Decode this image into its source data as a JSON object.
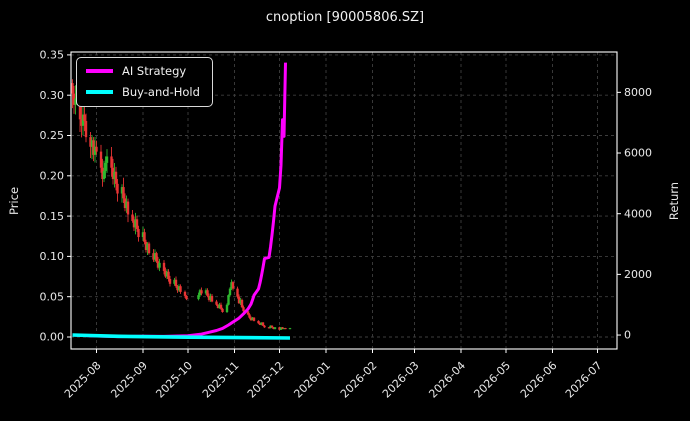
{
  "figure": {
    "background": "#000000",
    "spine_color": "#ffffff",
    "grid_color": "#8a8a8a",
    "tick_label_color": "#e8e8e8"
  },
  "chart_data": {
    "type": "line",
    "title": "cnoption [90005806.SZ]",
    "ylabel_left": "Price",
    "ylabel_right": "Return",
    "grid": true,
    "legend_position": "upper left",
    "y_left": {
      "ticks": [
        0.0,
        0.05,
        0.1,
        0.15,
        0.2,
        0.25,
        0.3,
        0.35
      ],
      "lim": [
        -0.0149,
        0.3536
      ]
    },
    "y_right": {
      "ticks": [
        0,
        2000,
        4000,
        6000,
        8000
      ],
      "lim": [
        -460,
        9330
      ]
    },
    "x": {
      "lim": [
        "2025-07-15",
        "2026-07-14"
      ],
      "tick_dates": [
        "2025-08-01",
        "2025-09-01",
        "2025-10-01",
        "2025-11-01",
        "2025-12-01",
        "2026-01-01",
        "2026-02-01",
        "2026-03-01",
        "2026-04-01",
        "2026-05-01",
        "2026-06-01",
        "2026-07-01"
      ],
      "tick_labels": [
        "2025-08",
        "2025-09",
        "2025-10",
        "2025-11",
        "2025-12",
        "2026-01",
        "2026-02",
        "2026-03",
        "2026-04",
        "2026-05",
        "2026-06",
        "2026-07"
      ]
    },
    "series": [
      {
        "name": "AI Strategy",
        "color": "#ff00ff",
        "axis": "right",
        "line_width": 3.0,
        "points": [
          [
            "2025-07-16",
            0
          ],
          [
            "2025-08-01",
            -30
          ],
          [
            "2025-08-15",
            -50
          ],
          [
            "2025-09-01",
            -40
          ],
          [
            "2025-09-15",
            -45
          ],
          [
            "2025-10-01",
            -20
          ],
          [
            "2025-10-10",
            30
          ],
          [
            "2025-10-15",
            90
          ],
          [
            "2025-10-20",
            150
          ],
          [
            "2025-10-24",
            220
          ],
          [
            "2025-10-28",
            330
          ],
          [
            "2025-10-31",
            430
          ],
          [
            "2025-11-04",
            560
          ],
          [
            "2025-11-07",
            700
          ],
          [
            "2025-11-10",
            860
          ],
          [
            "2025-11-12",
            1020
          ],
          [
            "2025-11-13",
            1160
          ],
          [
            "2025-11-14",
            1310
          ],
          [
            "2025-11-17",
            1520
          ],
          [
            "2025-11-18",
            1720
          ],
          [
            "2025-11-19",
            1960
          ],
          [
            "2025-11-20",
            2230
          ],
          [
            "2025-11-21",
            2520
          ],
          [
            "2025-11-24",
            2560
          ],
          [
            "2025-11-25",
            2900
          ],
          [
            "2025-11-26",
            3300
          ],
          [
            "2025-11-27",
            3750
          ],
          [
            "2025-11-28",
            4250
          ],
          [
            "2025-12-01",
            4850
          ],
          [
            "2025-12-02",
            5600
          ],
          [
            "2025-12-03",
            7100
          ],
          [
            "2025-12-04",
            6550
          ],
          [
            "2025-12-05",
            8980
          ]
        ]
      },
      {
        "name": "Buy-and-Hold",
        "color": "#00ffff",
        "axis": "right",
        "line_width": 3.6,
        "points": [
          [
            "2025-07-16",
            0
          ],
          [
            "2025-08-16",
            -40
          ],
          [
            "2025-10-01",
            -70
          ],
          [
            "2025-12-08",
            -96
          ]
        ]
      }
    ],
    "candles": {
      "axis": "left",
      "up_color": "#2eb82e",
      "down_color": "#e83434",
      "first_open": 0.315,
      "closes": [
        [
          "2025-07-16",
          0.302
        ],
        [
          "2025-07-17",
          0.288
        ],
        [
          "2025-07-18",
          0.296
        ],
        [
          "2025-07-21",
          0.27
        ],
        [
          "2025-07-22",
          0.262
        ],
        [
          "2025-07-23",
          0.276
        ],
        [
          "2025-07-24",
          0.268
        ],
        [
          "2025-07-25",
          0.248
        ],
        [
          "2025-07-28",
          0.236
        ],
        [
          "2025-07-29",
          0.244
        ],
        [
          "2025-07-30",
          0.226
        ],
        [
          "2025-07-31",
          0.236
        ],
        [
          "2025-08-01",
          0.23
        ],
        [
          "2025-08-04",
          0.21
        ],
        [
          "2025-08-05",
          0.196
        ],
        [
          "2025-08-06",
          0.206
        ],
        [
          "2025-08-07",
          0.216
        ],
        [
          "2025-08-08",
          0.224
        ],
        [
          "2025-08-11",
          0.21
        ],
        [
          "2025-08-12",
          0.196
        ],
        [
          "2025-08-13",
          0.205
        ],
        [
          "2025-08-14",
          0.19
        ],
        [
          "2025-08-15",
          0.178
        ],
        [
          "2025-08-18",
          0.186
        ],
        [
          "2025-08-19",
          0.172
        ],
        [
          "2025-08-20",
          0.16
        ],
        [
          "2025-08-21",
          0.168
        ],
        [
          "2025-08-22",
          0.152
        ],
        [
          "2025-08-25",
          0.144
        ],
        [
          "2025-08-26",
          0.136
        ],
        [
          "2025-08-27",
          0.146
        ],
        [
          "2025-08-28",
          0.134
        ],
        [
          "2025-08-29",
          0.124
        ],
        [
          "2025-09-01",
          0.13
        ],
        [
          "2025-09-02",
          0.118
        ],
        [
          "2025-09-03",
          0.108
        ],
        [
          "2025-09-04",
          0.116
        ],
        [
          "2025-09-05",
          0.104
        ],
        [
          "2025-09-08",
          0.096
        ],
        [
          "2025-09-09",
          0.104
        ],
        [
          "2025-09-10",
          0.094
        ],
        [
          "2025-09-11",
          0.086
        ],
        [
          "2025-09-12",
          0.092
        ],
        [
          "2025-09-15",
          0.082
        ],
        [
          "2025-09-16",
          0.075
        ],
        [
          "2025-09-17",
          0.081
        ],
        [
          "2025-09-18",
          0.072
        ],
        [
          "2025-09-19",
          0.066
        ],
        [
          "2025-09-22",
          0.071
        ],
        [
          "2025-09-23",
          0.063
        ],
        [
          "2025-09-24",
          0.058
        ],
        [
          "2025-09-25",
          0.063
        ],
        [
          "2025-09-26",
          0.056
        ],
        [
          "2025-09-29",
          0.051
        ],
        [
          "2025-09-30",
          0.047
        ],
        [
          "2025-10-08",
          0.052
        ],
        [
          "2025-10-09",
          0.058
        ],
        [
          "2025-10-10",
          0.054
        ],
        [
          "2025-10-13",
          0.058
        ],
        [
          "2025-10-14",
          0.051
        ],
        [
          "2025-10-15",
          0.046
        ],
        [
          "2025-10-16",
          0.051
        ],
        [
          "2025-10-17",
          0.044
        ],
        [
          "2025-10-20",
          0.04
        ],
        [
          "2025-10-21",
          0.036
        ],
        [
          "2025-10-22",
          0.04
        ],
        [
          "2025-10-23",
          0.035
        ],
        [
          "2025-10-24",
          0.031
        ],
        [
          "2025-10-27",
          0.04
        ],
        [
          "2025-10-28",
          0.052
        ],
        [
          "2025-10-29",
          0.06
        ],
        [
          "2025-10-30",
          0.068
        ],
        [
          "2025-10-31",
          0.06
        ],
        [
          "2025-11-03",
          0.05
        ],
        [
          "2025-11-04",
          0.042
        ],
        [
          "2025-11-05",
          0.046
        ],
        [
          "2025-11-06",
          0.037
        ],
        [
          "2025-11-07",
          0.032
        ],
        [
          "2025-11-10",
          0.028
        ],
        [
          "2025-11-11",
          0.024
        ],
        [
          "2025-11-12",
          0.021
        ],
        [
          "2025-11-13",
          0.024
        ],
        [
          "2025-11-14",
          0.02
        ],
        [
          "2025-11-17",
          0.017
        ],
        [
          "2025-11-18",
          0.015
        ],
        [
          "2025-11-19",
          0.018
        ],
        [
          "2025-11-20",
          0.014
        ],
        [
          "2025-11-21",
          0.012
        ],
        [
          "2025-11-24",
          0.011
        ],
        [
          "2025-11-25",
          0.014
        ],
        [
          "2025-11-26",
          0.012
        ],
        [
          "2025-11-27",
          0.01
        ],
        [
          "2025-11-28",
          0.012
        ],
        [
          "2025-12-01",
          0.009
        ],
        [
          "2025-12-02",
          0.012
        ],
        [
          "2025-12-03",
          0.01
        ],
        [
          "2025-12-04",
          0.011
        ],
        [
          "2025-12-05",
          0.01
        ],
        [
          "2025-12-08",
          0.011
        ]
      ]
    }
  }
}
